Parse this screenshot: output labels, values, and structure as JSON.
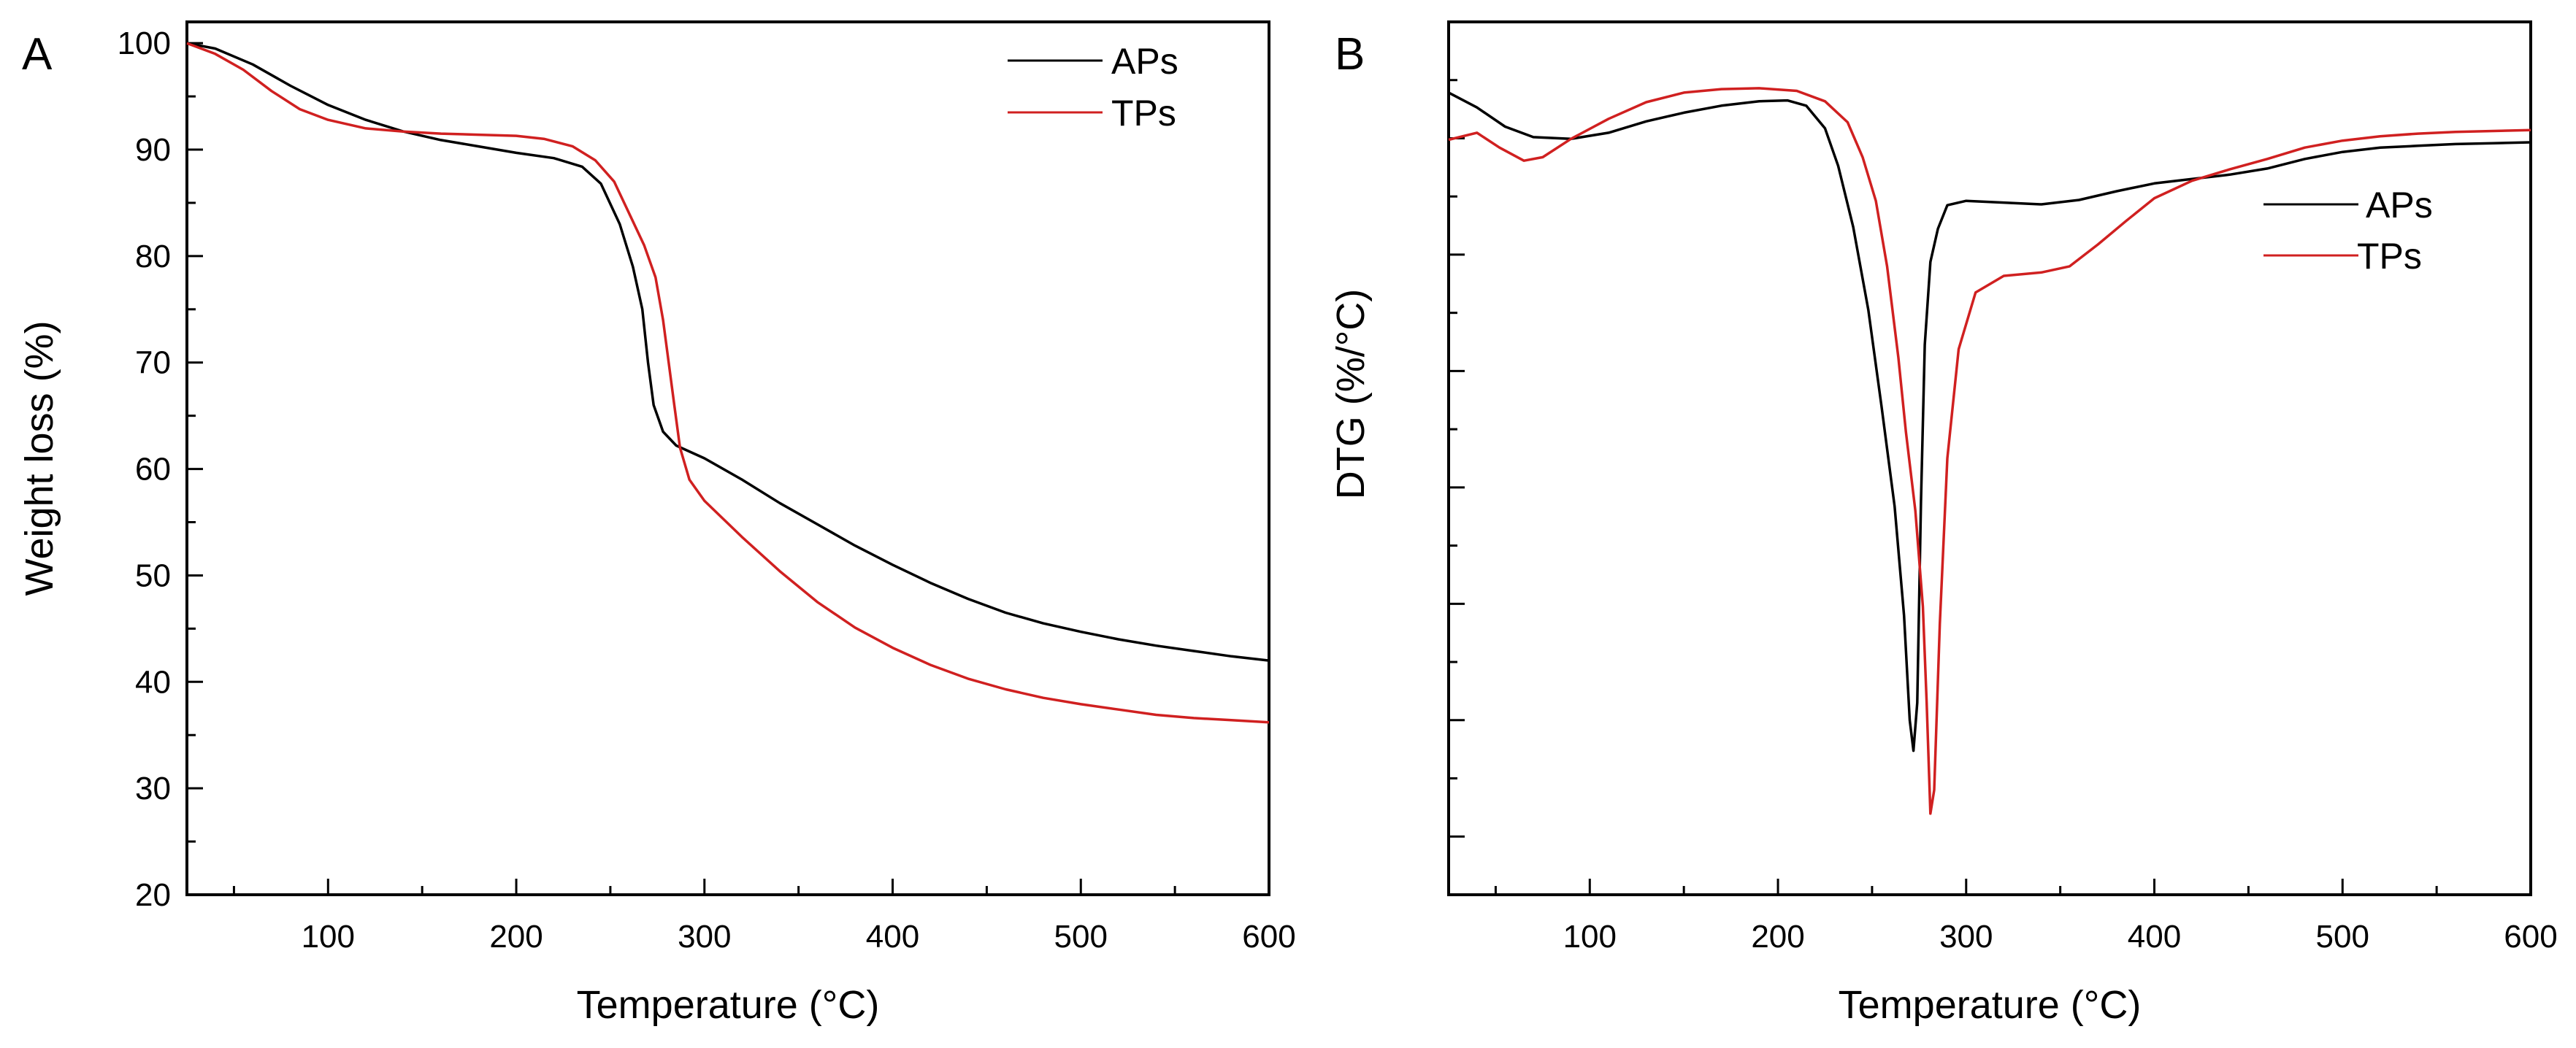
{
  "chart_data": [
    {
      "panel_label": "A",
      "type": "line",
      "xlabel": "Temperature (°C)",
      "ylabel": "Weight loss (%)",
      "xlim": [
        25,
        600
      ],
      "ylim": [
        20,
        102
      ],
      "x_ticks": [
        100,
        200,
        300,
        400,
        500,
        600
      ],
      "y_ticks": [
        20,
        30,
        40,
        50,
        60,
        70,
        80,
        90,
        100
      ],
      "legend_position": "top-right",
      "series": [
        {
          "name": "APs",
          "color": "#000000",
          "points": [
            [
              25,
              100
            ],
            [
              40,
              99.5
            ],
            [
              60,
              98
            ],
            [
              80,
              96
            ],
            [
              100,
              94.2
            ],
            [
              120,
              92.8
            ],
            [
              140,
              91.7
            ],
            [
              160,
              90.9
            ],
            [
              180,
              90.3
            ],
            [
              200,
              89.7
            ],
            [
              220,
              89.2
            ],
            [
              235,
              88.4
            ],
            [
              245,
              86.8
            ],
            [
              255,
              83
            ],
            [
              262,
              79
            ],
            [
              267,
              75
            ],
            [
              270,
              70
            ],
            [
              273,
              66
            ],
            [
              278,
              63.5
            ],
            [
              285,
              62.2
            ],
            [
              300,
              61
            ],
            [
              320,
              59
            ],
            [
              340,
              56.8
            ],
            [
              360,
              54.8
            ],
            [
              380,
              52.8
            ],
            [
              400,
              51
            ],
            [
              420,
              49.3
            ],
            [
              440,
              47.8
            ],
            [
              460,
              46.5
            ],
            [
              480,
              45.5
            ],
            [
              500,
              44.7
            ],
            [
              520,
              44
            ],
            [
              540,
              43.4
            ],
            [
              560,
              42.9
            ],
            [
              580,
              42.4
            ],
            [
              600,
              42
            ]
          ]
        },
        {
          "name": "TPs",
          "color": "#d02020",
          "points": [
            [
              25,
              100
            ],
            [
              40,
              99
            ],
            [
              55,
              97.5
            ],
            [
              70,
              95.5
            ],
            [
              85,
              93.8
            ],
            [
              100,
              92.8
            ],
            [
              120,
              92
            ],
            [
              140,
              91.7
            ],
            [
              160,
              91.5
            ],
            [
              180,
              91.4
            ],
            [
              200,
              91.3
            ],
            [
              215,
              91
            ],
            [
              230,
              90.3
            ],
            [
              242,
              89
            ],
            [
              252,
              87
            ],
            [
              260,
              84
            ],
            [
              268,
              81
            ],
            [
              274,
              78
            ],
            [
              278,
              74
            ],
            [
              281,
              70
            ],
            [
              284,
              66
            ],
            [
              287,
              62
            ],
            [
              292,
              59
            ],
            [
              300,
              57
            ],
            [
              320,
              53.6
            ],
            [
              340,
              50.4
            ],
            [
              360,
              47.5
            ],
            [
              380,
              45.1
            ],
            [
              400,
              43.2
            ],
            [
              420,
              41.6
            ],
            [
              440,
              40.3
            ],
            [
              460,
              39.3
            ],
            [
              480,
              38.5
            ],
            [
              500,
              37.9
            ],
            [
              520,
              37.4
            ],
            [
              540,
              36.9
            ],
            [
              560,
              36.6
            ],
            [
              580,
              36.4
            ],
            [
              600,
              36.2
            ]
          ]
        }
      ]
    },
    {
      "panel_label": "B",
      "type": "line",
      "xlabel": "Temperature (°C)",
      "ylabel": "DTG (%/°C)",
      "xlim": [
        25,
        600
      ],
      "ylim": [
        0,
        100
      ],
      "x_ticks": [
        100,
        200,
        300,
        400,
        500,
        600
      ],
      "y_ticks_unlabeled": true,
      "legend_position": "right",
      "series": [
        {
          "name": "APs",
          "color": "#000000",
          "points": [
            [
              25,
              91.9
            ],
            [
              40,
              90.2
            ],
            [
              55,
              88
            ],
            [
              70,
              86.8
            ],
            [
              90,
              86.6
            ],
            [
              110,
              87.3
            ],
            [
              130,
              88.6
            ],
            [
              150,
              89.6
            ],
            [
              170,
              90.4
            ],
            [
              190,
              90.9
            ],
            [
              205,
              91
            ],
            [
              215,
              90.4
            ],
            [
              225,
              87.8
            ],
            [
              232,
              83.5
            ],
            [
              240,
              76.5
            ],
            [
              248,
              67
            ],
            [
              255,
              56
            ],
            [
              262,
              44.5
            ],
            [
              267,
              32
            ],
            [
              270,
              20
            ],
            [
              272,
              16.5
            ],
            [
              274,
              22
            ],
            [
              276,
              45
            ],
            [
              278,
              63
            ],
            [
              281,
              72.5
            ],
            [
              285,
              76.3
            ],
            [
              290,
              79
            ],
            [
              300,
              79.5
            ],
            [
              320,
              79.3
            ],
            [
              340,
              79.1
            ],
            [
              360,
              79.6
            ],
            [
              380,
              80.6
            ],
            [
              400,
              81.5
            ],
            [
              420,
              82
            ],
            [
              440,
              82.5
            ],
            [
              460,
              83.2
            ],
            [
              480,
              84.3
            ],
            [
              500,
              85.1
            ],
            [
              520,
              85.6
            ],
            [
              540,
              85.8
            ],
            [
              560,
              86
            ],
            [
              580,
              86.1
            ],
            [
              600,
              86.2
            ]
          ]
        },
        {
          "name": "TPs",
          "color": "#d02020",
          "points": [
            [
              25,
              86.5
            ],
            [
              40,
              87.3
            ],
            [
              52,
              85.6
            ],
            [
              65,
              84.1
            ],
            [
              75,
              84.5
            ],
            [
              90,
              86.6
            ],
            [
              110,
              88.9
            ],
            [
              130,
              90.8
            ],
            [
              150,
              91.9
            ],
            [
              170,
              92.3
            ],
            [
              190,
              92.4
            ],
            [
              210,
              92.1
            ],
            [
              225,
              90.9
            ],
            [
              237,
              88.5
            ],
            [
              245,
              84.5
            ],
            [
              252,
              79.5
            ],
            [
              258,
              72
            ],
            [
              264,
              61.5
            ],
            [
              268,
              53
            ],
            [
              273,
              44
            ],
            [
              277,
              33
            ],
            [
              279,
              22
            ],
            [
              281,
              9.3
            ],
            [
              283,
              12
            ],
            [
              286,
              31
            ],
            [
              290,
              50
            ],
            [
              296,
              62.5
            ],
            [
              305,
              69
            ],
            [
              320,
              70.9
            ],
            [
              340,
              71.3
            ],
            [
              355,
              72
            ],
            [
              370,
              74.5
            ],
            [
              385,
              77.2
            ],
            [
              400,
              79.8
            ],
            [
              420,
              81.8
            ],
            [
              440,
              83.1
            ],
            [
              460,
              84.3
            ],
            [
              480,
              85.6
            ],
            [
              500,
              86.4
            ],
            [
              520,
              86.9
            ],
            [
              540,
              87.2
            ],
            [
              560,
              87.4
            ],
            [
              580,
              87.5
            ],
            [
              600,
              87.6
            ]
          ]
        }
      ]
    }
  ]
}
